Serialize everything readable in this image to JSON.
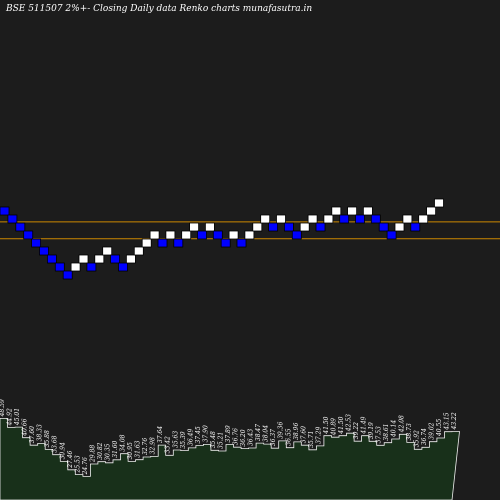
{
  "header": {
    "title": "BSE 511507 2%+- Closing Daily data  Renko  charts munafasutra.in"
  },
  "colors": {
    "background": "#1c1c1c",
    "up_brick": "#ffffff",
    "down_brick": "#0000ff",
    "reference_line": "#cc8800",
    "volume_fill": "#18301a",
    "volume_stroke": "#f0f0f0"
  },
  "chart_data": [
    {
      "type": "renko",
      "brick_size_label": "2%+-",
      "bricks": [
        {
          "dir": "down",
          "level": 0
        },
        {
          "dir": "down",
          "level": -1
        },
        {
          "dir": "down",
          "level": -2
        },
        {
          "dir": "down",
          "level": -3
        },
        {
          "dir": "down",
          "level": -4
        },
        {
          "dir": "down",
          "level": -5
        },
        {
          "dir": "down",
          "level": -6
        },
        {
          "dir": "down",
          "level": -7
        },
        {
          "dir": "down",
          "level": -8
        },
        {
          "dir": "up",
          "level": -7
        },
        {
          "dir": "up",
          "level": -6
        },
        {
          "dir": "down",
          "level": -7
        },
        {
          "dir": "up",
          "level": -6
        },
        {
          "dir": "up",
          "level": -5
        },
        {
          "dir": "down",
          "level": -6
        },
        {
          "dir": "down",
          "level": -7
        },
        {
          "dir": "up",
          "level": -6
        },
        {
          "dir": "up",
          "level": -5
        },
        {
          "dir": "up",
          "level": -4
        },
        {
          "dir": "up",
          "level": -3
        },
        {
          "dir": "down",
          "level": -4
        },
        {
          "dir": "up",
          "level": -3
        },
        {
          "dir": "down",
          "level": -4
        },
        {
          "dir": "up",
          "level": -3
        },
        {
          "dir": "up",
          "level": -2
        },
        {
          "dir": "down",
          "level": -3
        },
        {
          "dir": "up",
          "level": -2
        },
        {
          "dir": "down",
          "level": -3
        },
        {
          "dir": "down",
          "level": -4
        },
        {
          "dir": "up",
          "level": -3
        },
        {
          "dir": "down",
          "level": -4
        },
        {
          "dir": "up",
          "level": -3
        },
        {
          "dir": "up",
          "level": -2
        },
        {
          "dir": "up",
          "level": -1
        },
        {
          "dir": "down",
          "level": -2
        },
        {
          "dir": "up",
          "level": -1
        },
        {
          "dir": "down",
          "level": -2
        },
        {
          "dir": "down",
          "level": -3
        },
        {
          "dir": "up",
          "level": -2
        },
        {
          "dir": "up",
          "level": -1
        },
        {
          "dir": "down",
          "level": -2
        },
        {
          "dir": "up",
          "level": -1
        },
        {
          "dir": "up",
          "level": 0
        },
        {
          "dir": "down",
          "level": -1
        },
        {
          "dir": "up",
          "level": 0
        },
        {
          "dir": "down",
          "level": -1
        },
        {
          "dir": "up",
          "level": 0
        },
        {
          "dir": "down",
          "level": -1
        },
        {
          "dir": "down",
          "level": -2
        },
        {
          "dir": "down",
          "level": -3
        },
        {
          "dir": "up",
          "level": -2
        },
        {
          "dir": "up",
          "level": -1
        },
        {
          "dir": "down",
          "level": -2
        },
        {
          "dir": "up",
          "level": -1
        },
        {
          "dir": "up",
          "level": 0
        },
        {
          "dir": "up",
          "level": 1
        }
      ],
      "reference_lines": [
        {
          "level": -1.8
        },
        {
          "level": -3.9
        }
      ]
    },
    {
      "type": "area",
      "volume_labels": [
        "48.59",
        "44.92",
        "45.01",
        "40.66",
        "37.60",
        "38.33",
        "35.88",
        "33.68",
        "30.94",
        "27.46",
        "25.53",
        "24.76",
        "29.88",
        "30.82",
        "30.35",
        "31.60",
        "34.08",
        "30.95",
        "31.63",
        "32.76",
        "32.98",
        "37.64",
        "33.42",
        "35.63",
        "35.39",
        "36.49",
        "37.45",
        "37.90",
        "35.48",
        "35.21",
        "37.89",
        "36.76",
        "36.20",
        "36.43",
        "38.47",
        "38.04",
        "36.37",
        "39.36",
        "36.55",
        "38.96",
        "37.60",
        "35.71",
        "37.29",
        "41.50",
        "40.89",
        "41.50",
        "42.53",
        "39.22",
        "41.49",
        "39.19",
        "37.53",
        "38.61",
        "40.14",
        "42.08",
        "38.73",
        "35.92",
        "36.74",
        "39.02",
        "40.55",
        "43.15",
        "43.22"
      ]
    }
  ]
}
